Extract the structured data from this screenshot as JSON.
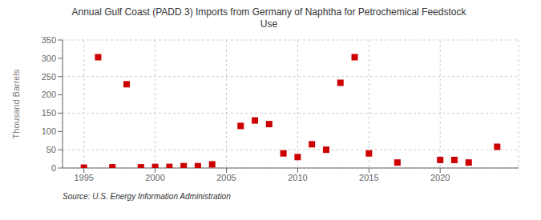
{
  "chart_data": {
    "type": "scatter",
    "title": "Annual Gulf Coast (PADD 3) Imports from Germany of Naphtha for Petrochemical Feedstock\nUse",
    "ylabel": "Thousand Barrels",
    "source": "Source: U.S. Energy Information Administration",
    "x": [
      1995,
      1996,
      1997,
      1998,
      1999,
      2000,
      2001,
      2002,
      2003,
      2004,
      2006,
      2007,
      2008,
      2009,
      2010,
      2011,
      2012,
      2013,
      2014,
      2015,
      2017,
      2020,
      2021,
      2022,
      2024
    ],
    "values": [
      1,
      303,
      2,
      229,
      2,
      3,
      3,
      5,
      5,
      10,
      115,
      130,
      120,
      40,
      30,
      65,
      50,
      233,
      303,
      40,
      15,
      22,
      22,
      15,
      58
    ],
    "color": "#cc0000",
    "marker": "square",
    "xlim": [
      1993.5,
      2025.5
    ],
    "xticks": [
      1995,
      2000,
      2005,
      2010,
      2015,
      2020
    ],
    "ylim": [
      0,
      350
    ],
    "yticks": [
      0,
      50,
      100,
      150,
      200,
      250,
      300,
      350
    ],
    "grid": true
  }
}
